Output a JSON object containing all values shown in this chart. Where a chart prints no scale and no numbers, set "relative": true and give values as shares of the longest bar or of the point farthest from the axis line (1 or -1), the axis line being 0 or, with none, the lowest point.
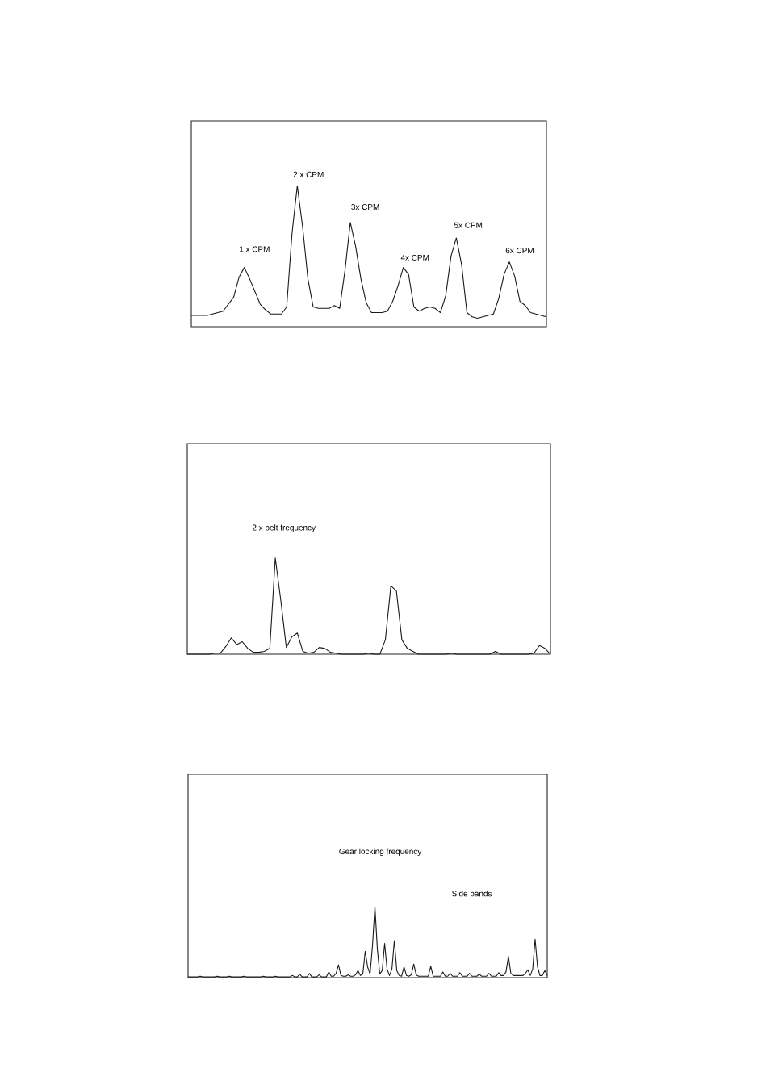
{
  "chart_data": [
    {
      "type": "line",
      "relative": true,
      "color": "#1a1a1a",
      "categories": [
        null,
        null,
        null,
        null,
        null,
        null,
        null,
        null,
        null,
        null,
        null,
        null,
        null,
        null,
        null,
        null,
        null,
        null,
        null,
        null,
        null,
        null,
        null,
        null,
        null,
        null,
        null,
        null,
        null,
        null,
        null,
        null,
        null,
        null,
        null,
        null,
        null,
        null,
        null,
        null,
        null,
        null,
        null,
        null,
        null,
        null,
        null,
        null,
        null,
        null,
        null,
        null,
        null,
        null,
        null,
        null,
        null,
        null,
        null,
        null,
        null,
        null,
        null,
        null,
        null,
        null,
        null,
        null
      ],
      "values": [
        0.08,
        0.08,
        0.08,
        0.08,
        0.09,
        0.1,
        0.11,
        0.16,
        0.21,
        0.35,
        0.42,
        0.34,
        0.25,
        0.16,
        0.12,
        0.09,
        0.09,
        0.09,
        0.14,
        0.66,
        1,
        0.71,
        0.34,
        0.14,
        0.13,
        0.13,
        0.13,
        0.15,
        0.13,
        0.4,
        0.74,
        0.57,
        0.34,
        0.17,
        0.1,
        0.1,
        0.1,
        0.11,
        0.18,
        0.29,
        0.42,
        0.37,
        0.14,
        0.11,
        0.13,
        0.14,
        0.13,
        0.1,
        0.22,
        0.5,
        0.63,
        0.44,
        0.1,
        0.07,
        0.06,
        0.07,
        0.08,
        0.09,
        0.2,
        0.37,
        0.46,
        0.36,
        0.18,
        0.15,
        0.1,
        0.09,
        0.08,
        0.07
      ],
      "annotations": [
        "1 x CPM",
        "2 x CPM",
        "3x CPM",
        "4x CPM",
        "5x CPM",
        "6x CPM"
      ]
    },
    {
      "type": "line",
      "relative": true,
      "color": "#1a1a1a",
      "categories": [
        null,
        null,
        null,
        null,
        null,
        null,
        null,
        null,
        null,
        null,
        null,
        null,
        null,
        null,
        null,
        null,
        null,
        null,
        null,
        null,
        null,
        null,
        null,
        null,
        null,
        null,
        null,
        null,
        null,
        null,
        null,
        null,
        null,
        null,
        null,
        null,
        null,
        null,
        null,
        null,
        null,
        null,
        null,
        null,
        null,
        null,
        null,
        null,
        null,
        null,
        null,
        null,
        null,
        null,
        null,
        null,
        null,
        null,
        null,
        null,
        null,
        null,
        null,
        null,
        null,
        null,
        null
      ],
      "values": [
        0,
        0,
        0,
        0,
        0,
        0.01,
        0.01,
        0.08,
        0.17,
        0.1,
        0.13,
        0.06,
        0.02,
        0.02,
        0.03,
        0.06,
        1,
        0.56,
        0.07,
        0.18,
        0.22,
        0.03,
        0.01,
        0.02,
        0.07,
        0.06,
        0.02,
        0.01,
        0,
        0,
        0,
        0,
        0,
        0.01,
        0,
        0,
        0.15,
        0.71,
        0.66,
        0.15,
        0.06,
        0.03,
        0,
        0,
        0,
        0,
        0,
        0,
        0.01,
        0,
        0,
        0,
        0,
        0,
        0,
        0,
        0.03,
        0,
        0,
        0,
        0,
        0,
        0,
        0.01,
        0.09,
        0.06,
        0
      ],
      "annotations": [
        "2 x belt frequency"
      ]
    },
    {
      "type": "line",
      "relative": true,
      "color": "#1a1a1a",
      "categories": [
        null,
        null,
        null,
        null,
        null,
        null,
        null,
        null,
        null,
        null,
        null,
        null,
        null,
        null,
        null,
        null,
        null,
        null,
        null,
        null,
        null,
        null,
        null,
        null,
        null,
        null,
        null,
        null,
        null,
        null,
        null,
        null,
        null,
        null,
        null,
        null,
        null,
        null,
        null,
        null,
        null,
        null,
        null,
        null,
        null,
        null,
        null,
        null,
        null,
        null,
        null,
        null,
        null,
        null,
        null,
        null,
        null,
        null,
        null,
        null,
        null,
        null,
        null,
        null,
        null,
        null,
        null,
        null,
        null,
        null,
        null,
        null,
        null,
        null,
        null,
        null,
        null,
        null,
        null,
        null,
        null,
        null,
        null,
        null,
        null,
        null,
        null,
        null,
        null,
        null,
        null,
        null,
        null,
        null,
        null,
        null,
        null,
        null,
        null,
        null,
        null,
        null,
        null,
        null,
        null,
        null,
        null,
        null,
        null,
        null,
        null,
        null,
        null,
        null,
        null,
        null,
        null,
        null,
        null,
        null,
        null,
        null,
        null,
        null,
        null,
        null,
        null,
        null,
        null,
        null,
        null,
        null,
        null,
        null,
        null,
        null,
        null,
        null,
        null,
        null,
        null,
        null,
        null,
        null,
        null,
        null,
        null,
        null,
        null
      ],
      "values": [
        0.01,
        0.01,
        0.01,
        0.01,
        0.01,
        0.02,
        0.01,
        0.01,
        0.01,
        0.01,
        0.01,
        0.01,
        0.02,
        0.01,
        0.01,
        0.01,
        0.01,
        0.02,
        0.01,
        0.01,
        0.01,
        0.01,
        0.01,
        0.02,
        0.01,
        0.01,
        0.01,
        0.01,
        0.01,
        0.01,
        0.01,
        0.02,
        0.01,
        0.01,
        0.01,
        0.01,
        0.02,
        0.01,
        0.01,
        0.01,
        0.01,
        0.01,
        0.01,
        0.03,
        0.01,
        0.01,
        0.05,
        0.01,
        0.01,
        0.01,
        0.06,
        0.01,
        0.01,
        0.01,
        0.04,
        0.01,
        0.01,
        0.01,
        0.08,
        0.02,
        0.02,
        0.06,
        0.18,
        0.03,
        0.02,
        0.02,
        0.04,
        0.02,
        0.02,
        0.04,
        0.1,
        0.03,
        0.05,
        0.37,
        0.15,
        0.05,
        0.45,
        1,
        0.4,
        0.05,
        0.1,
        0.48,
        0.12,
        0.03,
        0.12,
        0.52,
        0.1,
        0.03,
        0.02,
        0.15,
        0.03,
        0.02,
        0.04,
        0.19,
        0.04,
        0.02,
        0.02,
        0.02,
        0.02,
        0.02,
        0.16,
        0.02,
        0.02,
        0.02,
        0.02,
        0.08,
        0.02,
        0.02,
        0.06,
        0.02,
        0.02,
        0.02,
        0.07,
        0.02,
        0.02,
        0.02,
        0.06,
        0.02,
        0.02,
        0.02,
        0.05,
        0.02,
        0.02,
        0.02,
        0.06,
        0.02,
        0.02,
        0.02,
        0.07,
        0.03,
        0.03,
        0.08,
        0.3,
        0.06,
        0.03,
        0.03,
        0.03,
        0.03,
        0.03,
        0.06,
        0.11,
        0.03,
        0.12,
        0.54,
        0.15,
        0.03,
        0.03,
        0.1,
        0.03
      ],
      "annotations": [
        "Gear locking frequency",
        "Side bands"
      ]
    }
  ]
}
